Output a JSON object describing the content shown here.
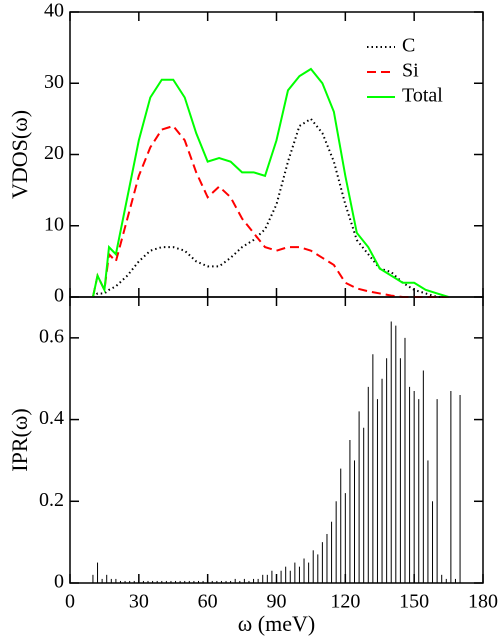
{
  "chart_data": [
    {
      "type": "line",
      "ylabel": "VDOS(ω)",
      "xlim": [
        0,
        180
      ],
      "ylim": [
        0,
        40
      ],
      "yticks": [
        0,
        10,
        20,
        30,
        40
      ],
      "legend": "upper right",
      "x": [
        10,
        12,
        15,
        17,
        20,
        25,
        30,
        35,
        40,
        45,
        50,
        55,
        60,
        65,
        70,
        75,
        80,
        85,
        90,
        95,
        100,
        105,
        110,
        115,
        120,
        125,
        130,
        135,
        140,
        145,
        150,
        155,
        160,
        165
      ],
      "series": [
        {
          "name": "C",
          "color": "#000000",
          "style": "dotted",
          "values": [
            0,
            0.5,
            0.5,
            1,
            1.5,
            3,
            5,
            6.5,
            7,
            7,
            6.5,
            5,
            4.3,
            4.3,
            5.5,
            7,
            8,
            9.5,
            13,
            19,
            24,
            25,
            23,
            19,
            13,
            8,
            6,
            4,
            3.5,
            2,
            1,
            0.5,
            0,
            0
          ]
        },
        {
          "name": "Si",
          "color": "#ff0000",
          "style": "dashed",
          "values": [
            0,
            3,
            1,
            6,
            5,
            11,
            17,
            21,
            23.5,
            24,
            22,
            17.5,
            14,
            15.5,
            14,
            11,
            9,
            7,
            6.5,
            7,
            7,
            6.5,
            5.5,
            4.5,
            2,
            1.2,
            0.8,
            0.5,
            0.2,
            0,
            0,
            0,
            0,
            0
          ]
        },
        {
          "name": "Total",
          "color": "#00ff00",
          "style": "solid",
          "values": [
            0,
            3,
            1,
            7,
            6,
            14,
            22,
            28,
            30.5,
            30.5,
            28,
            23,
            19,
            19.5,
            19,
            17.5,
            17.5,
            17,
            22,
            29,
            31,
            32,
            30,
            26,
            17,
            9,
            7,
            4,
            3,
            2,
            2,
            1,
            0.5,
            0
          ]
        }
      ]
    },
    {
      "type": "spike",
      "ylabel": "IPR(ω)",
      "xlabel": "ω  (meV)",
      "color": "#000000",
      "xlim": [
        0,
        180
      ],
      "xticks": [
        0,
        30,
        60,
        90,
        120,
        150,
        180
      ],
      "ylim": [
        0,
        0.7
      ],
      "yticks": [
        0,
        0.2,
        0.4,
        0.6
      ],
      "x": [
        10,
        12,
        14,
        16,
        18,
        20,
        22,
        24,
        26,
        28,
        30,
        32,
        34,
        36,
        38,
        40,
        42,
        44,
        46,
        48,
        50,
        52,
        54,
        56,
        58,
        60,
        62,
        64,
        66,
        68,
        70,
        72,
        74,
        76,
        78,
        80,
        82,
        84,
        86,
        88,
        90,
        92,
        94,
        96,
        98,
        100,
        102,
        104,
        106,
        108,
        110,
        112,
        114,
        116,
        118,
        120,
        122,
        124,
        126,
        128,
        130,
        132,
        134,
        136,
        138,
        140,
        142,
        144,
        146,
        148,
        150,
        152,
        154,
        156,
        158,
        160,
        162,
        164,
        166,
        168,
        170
      ],
      "values": [
        0.02,
        0.05,
        0.01,
        0.02,
        0.01,
        0.01,
        0.005,
        0.005,
        0.005,
        0.005,
        0.005,
        0.005,
        0.005,
        0.005,
        0.005,
        0.005,
        0.005,
        0.005,
        0.005,
        0.005,
        0.005,
        0.005,
        0.005,
        0.005,
        0.005,
        0.005,
        0.005,
        0.005,
        0.005,
        0.005,
        0.005,
        0.01,
        0.005,
        0.01,
        0.005,
        0.01,
        0.01,
        0.02,
        0.02,
        0.03,
        0.02,
        0.03,
        0.04,
        0.03,
        0.05,
        0.04,
        0.06,
        0.05,
        0.08,
        0.07,
        0.1,
        0.12,
        0.15,
        0.2,
        0.28,
        0.22,
        0.35,
        0.3,
        0.42,
        0.38,
        0.48,
        0.56,
        0.45,
        0.5,
        0.55,
        0.64,
        0.63,
        0.55,
        0.6,
        0.48,
        0.47,
        0.45,
        0.52,
        0.3,
        0.2,
        0.45,
        0.02,
        0.01,
        0.47,
        0.01,
        0.46
      ]
    }
  ]
}
